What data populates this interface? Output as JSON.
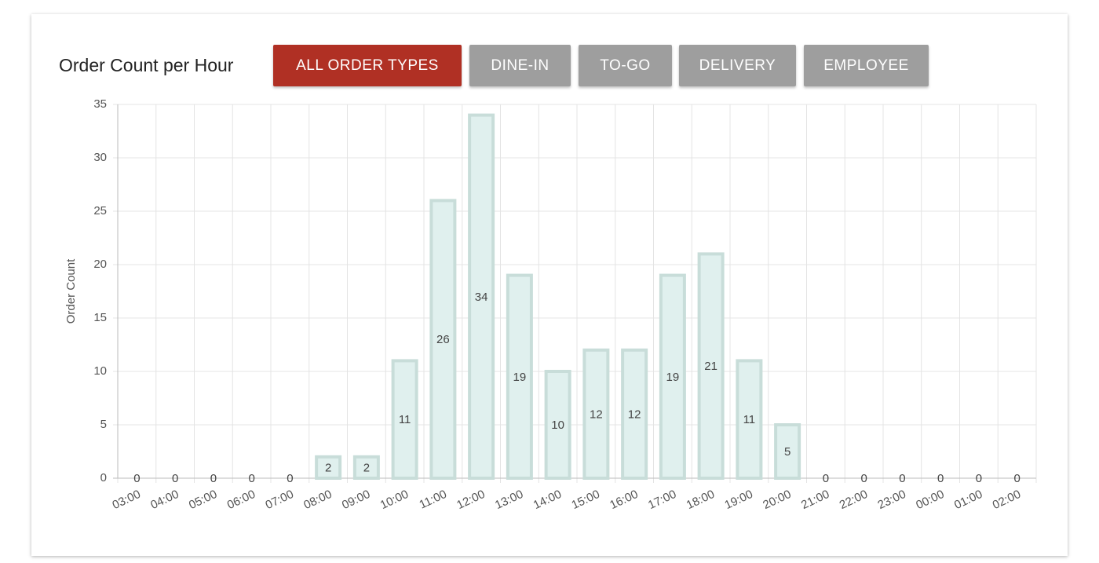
{
  "header": {
    "title": "Order Count per Hour",
    "buttons": [
      "ALL ORDER TYPES",
      "DINE-IN",
      "TO-GO",
      "DELIVERY",
      "EMPLOYEE"
    ]
  },
  "chart_data": {
    "type": "bar",
    "y_label": "Order Count",
    "categories": [
      "03:00",
      "04:00",
      "05:00",
      "06:00",
      "07:00",
      "08:00",
      "09:00",
      "10:00",
      "11:00",
      "12:00",
      "13:00",
      "14:00",
      "15:00",
      "16:00",
      "17:00",
      "18:00",
      "19:00",
      "20:00",
      "21:00",
      "22:00",
      "23:00",
      "00:00",
      "01:00",
      "02:00"
    ],
    "values": [
      0,
      0,
      0,
      0,
      0,
      2,
      2,
      11,
      26,
      34,
      19,
      10,
      12,
      12,
      19,
      21,
      11,
      5,
      0,
      0,
      0,
      0,
      0,
      0
    ],
    "color": "#e0f0ee",
    "border_color": "#c8ddd9",
    "ylim": [
      0,
      35
    ],
    "yticks": [
      0,
      5,
      10,
      15,
      20,
      25,
      30,
      35
    ],
    "grid": true
  }
}
